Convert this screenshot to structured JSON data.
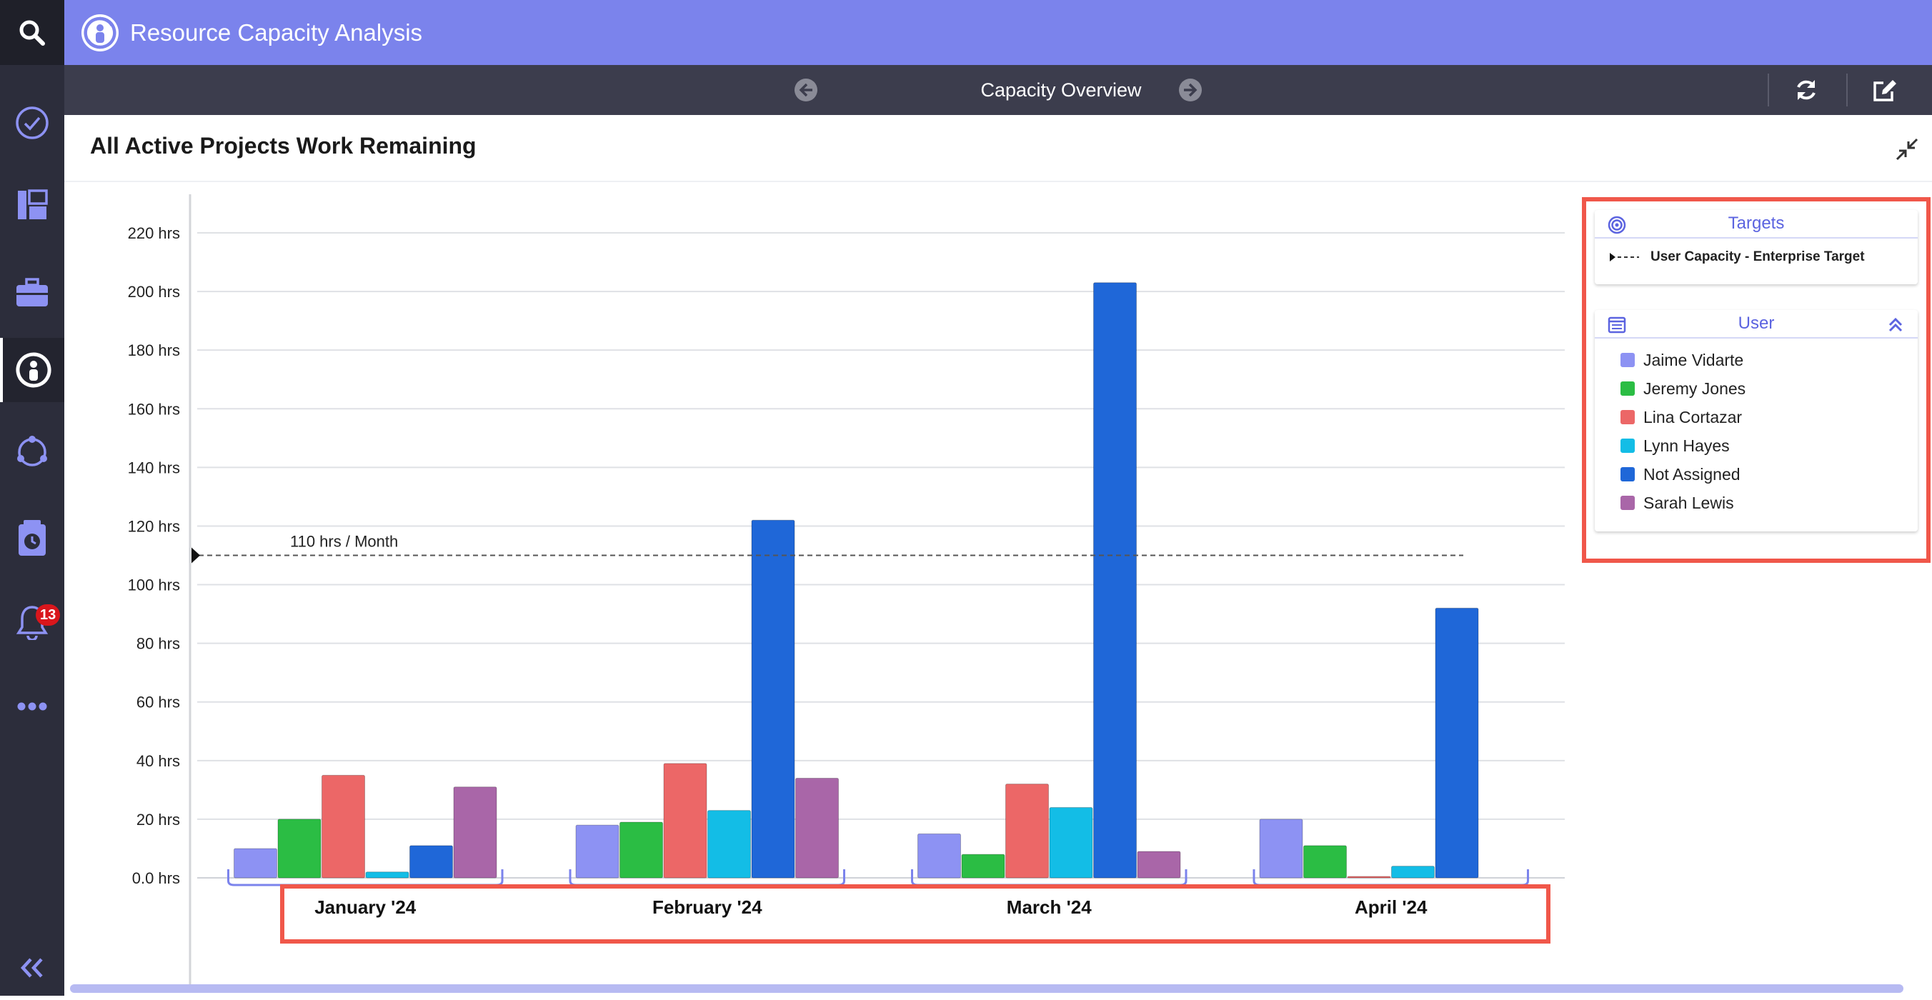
{
  "app": {
    "title": "Resource Capacity Analysis",
    "brand_color": "#7b83ec"
  },
  "nav": {
    "icons": [
      "search-icon",
      "tasks-check-icon",
      "dashboard-icon",
      "briefcase-icon",
      "resource-capacity-icon",
      "hub-network-icon",
      "timesheet-icon",
      "bell-icon",
      "more-icon",
      "collapse-rail-icon"
    ],
    "notifications_count": "13"
  },
  "subbar": {
    "view_title": "Capacity Overview",
    "prev_icon": "arrow-left-icon",
    "next_icon": "arrow-right-icon",
    "refresh_icon": "refresh-icon",
    "edit_icon": "edit-icon"
  },
  "panel": {
    "title": "All Active Projects Work Remaining",
    "collapse_icon": "compress-icon"
  },
  "chart_data": {
    "type": "bar",
    "title": "All Active Projects Work Remaining",
    "categories": [
      "January '24",
      "February '24",
      "March '24",
      "April '24"
    ],
    "ylim": [
      0,
      220
    ],
    "yticks": [
      0,
      20,
      40,
      60,
      80,
      100,
      120,
      140,
      160,
      180,
      200,
      220
    ],
    "ytick_labels": [
      "0.0 hrs",
      "20 hrs",
      "40 hrs",
      "60 hrs",
      "80 hrs",
      "100 hrs",
      "120 hrs",
      "140 hrs",
      "160 hrs",
      "180 hrs",
      "200 hrs",
      "220 hrs"
    ],
    "grid": true,
    "target": {
      "value": 110,
      "label": "110 hrs / Month"
    },
    "series": [
      {
        "name": "Jaime Vidarte",
        "color": "#8d92f3",
        "values": [
          10,
          18,
          15,
          20
        ]
      },
      {
        "name": "Jeremy Jones",
        "color": "#2bbd44",
        "values": [
          20,
          19,
          8,
          11
        ]
      },
      {
        "name": "Lina Cortazar",
        "color": "#ec6767",
        "values": [
          35,
          39,
          32,
          0.5
        ]
      },
      {
        "name": "Lynn Hayes",
        "color": "#13bde6",
        "values": [
          2,
          23,
          24,
          4
        ]
      },
      {
        "name": "Not Assigned",
        "color": "#1f67d8",
        "values": [
          11,
          122,
          203,
          92
        ]
      },
      {
        "name": "Sarah Lewis",
        "color": "#a966a8",
        "values": [
          31,
          34,
          9,
          0
        ]
      }
    ]
  },
  "legend": {
    "targets_title": "Targets",
    "targets_icon": "target-icon",
    "target_item": "User Capacity - Enterprise Target",
    "user_title": "User",
    "user_icon": "list-icon",
    "user_collapse_icon": "double-chevron-up-icon"
  }
}
